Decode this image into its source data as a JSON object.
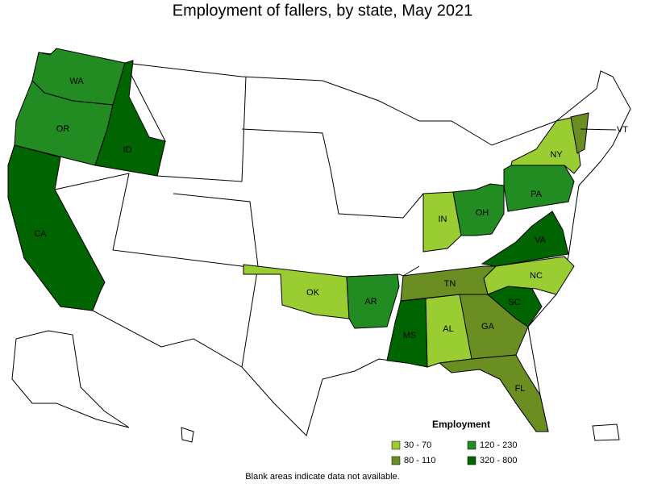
{
  "title": "Employment of fallers, by state, May 2021",
  "legend": {
    "title": "Employment",
    "bins": [
      {
        "label": "30 - 70",
        "color": "#9acd32"
      },
      {
        "label": "80 - 110",
        "color": "#6b8e23"
      },
      {
        "label": "120 - 230",
        "color": "#228b22"
      },
      {
        "label": "320 - 800",
        "color": "#006400"
      }
    ]
  },
  "states": [
    {
      "label": "WA",
      "bin": 2
    },
    {
      "label": "OR",
      "bin": 2
    },
    {
      "label": "ID",
      "bin": 3
    },
    {
      "label": "CA",
      "bin": 3
    },
    {
      "label": "OK",
      "bin": 0
    },
    {
      "label": "AR",
      "bin": 2
    },
    {
      "label": "MS",
      "bin": 3
    },
    {
      "label": "AL",
      "bin": 0
    },
    {
      "label": "GA",
      "bin": 1
    },
    {
      "label": "FL",
      "bin": 1
    },
    {
      "label": "SC",
      "bin": 3
    },
    {
      "label": "NC",
      "bin": 0
    },
    {
      "label": "TN",
      "bin": 1
    },
    {
      "label": "VA",
      "bin": 3
    },
    {
      "label": "IN",
      "bin": 0
    },
    {
      "label": "OH",
      "bin": 2
    },
    {
      "label": "PA",
      "bin": 2
    },
    {
      "label": "NY",
      "bin": 0
    },
    {
      "label": "VT",
      "bin": 1
    }
  ],
  "footnote": "Blank areas indicate data not available."
}
